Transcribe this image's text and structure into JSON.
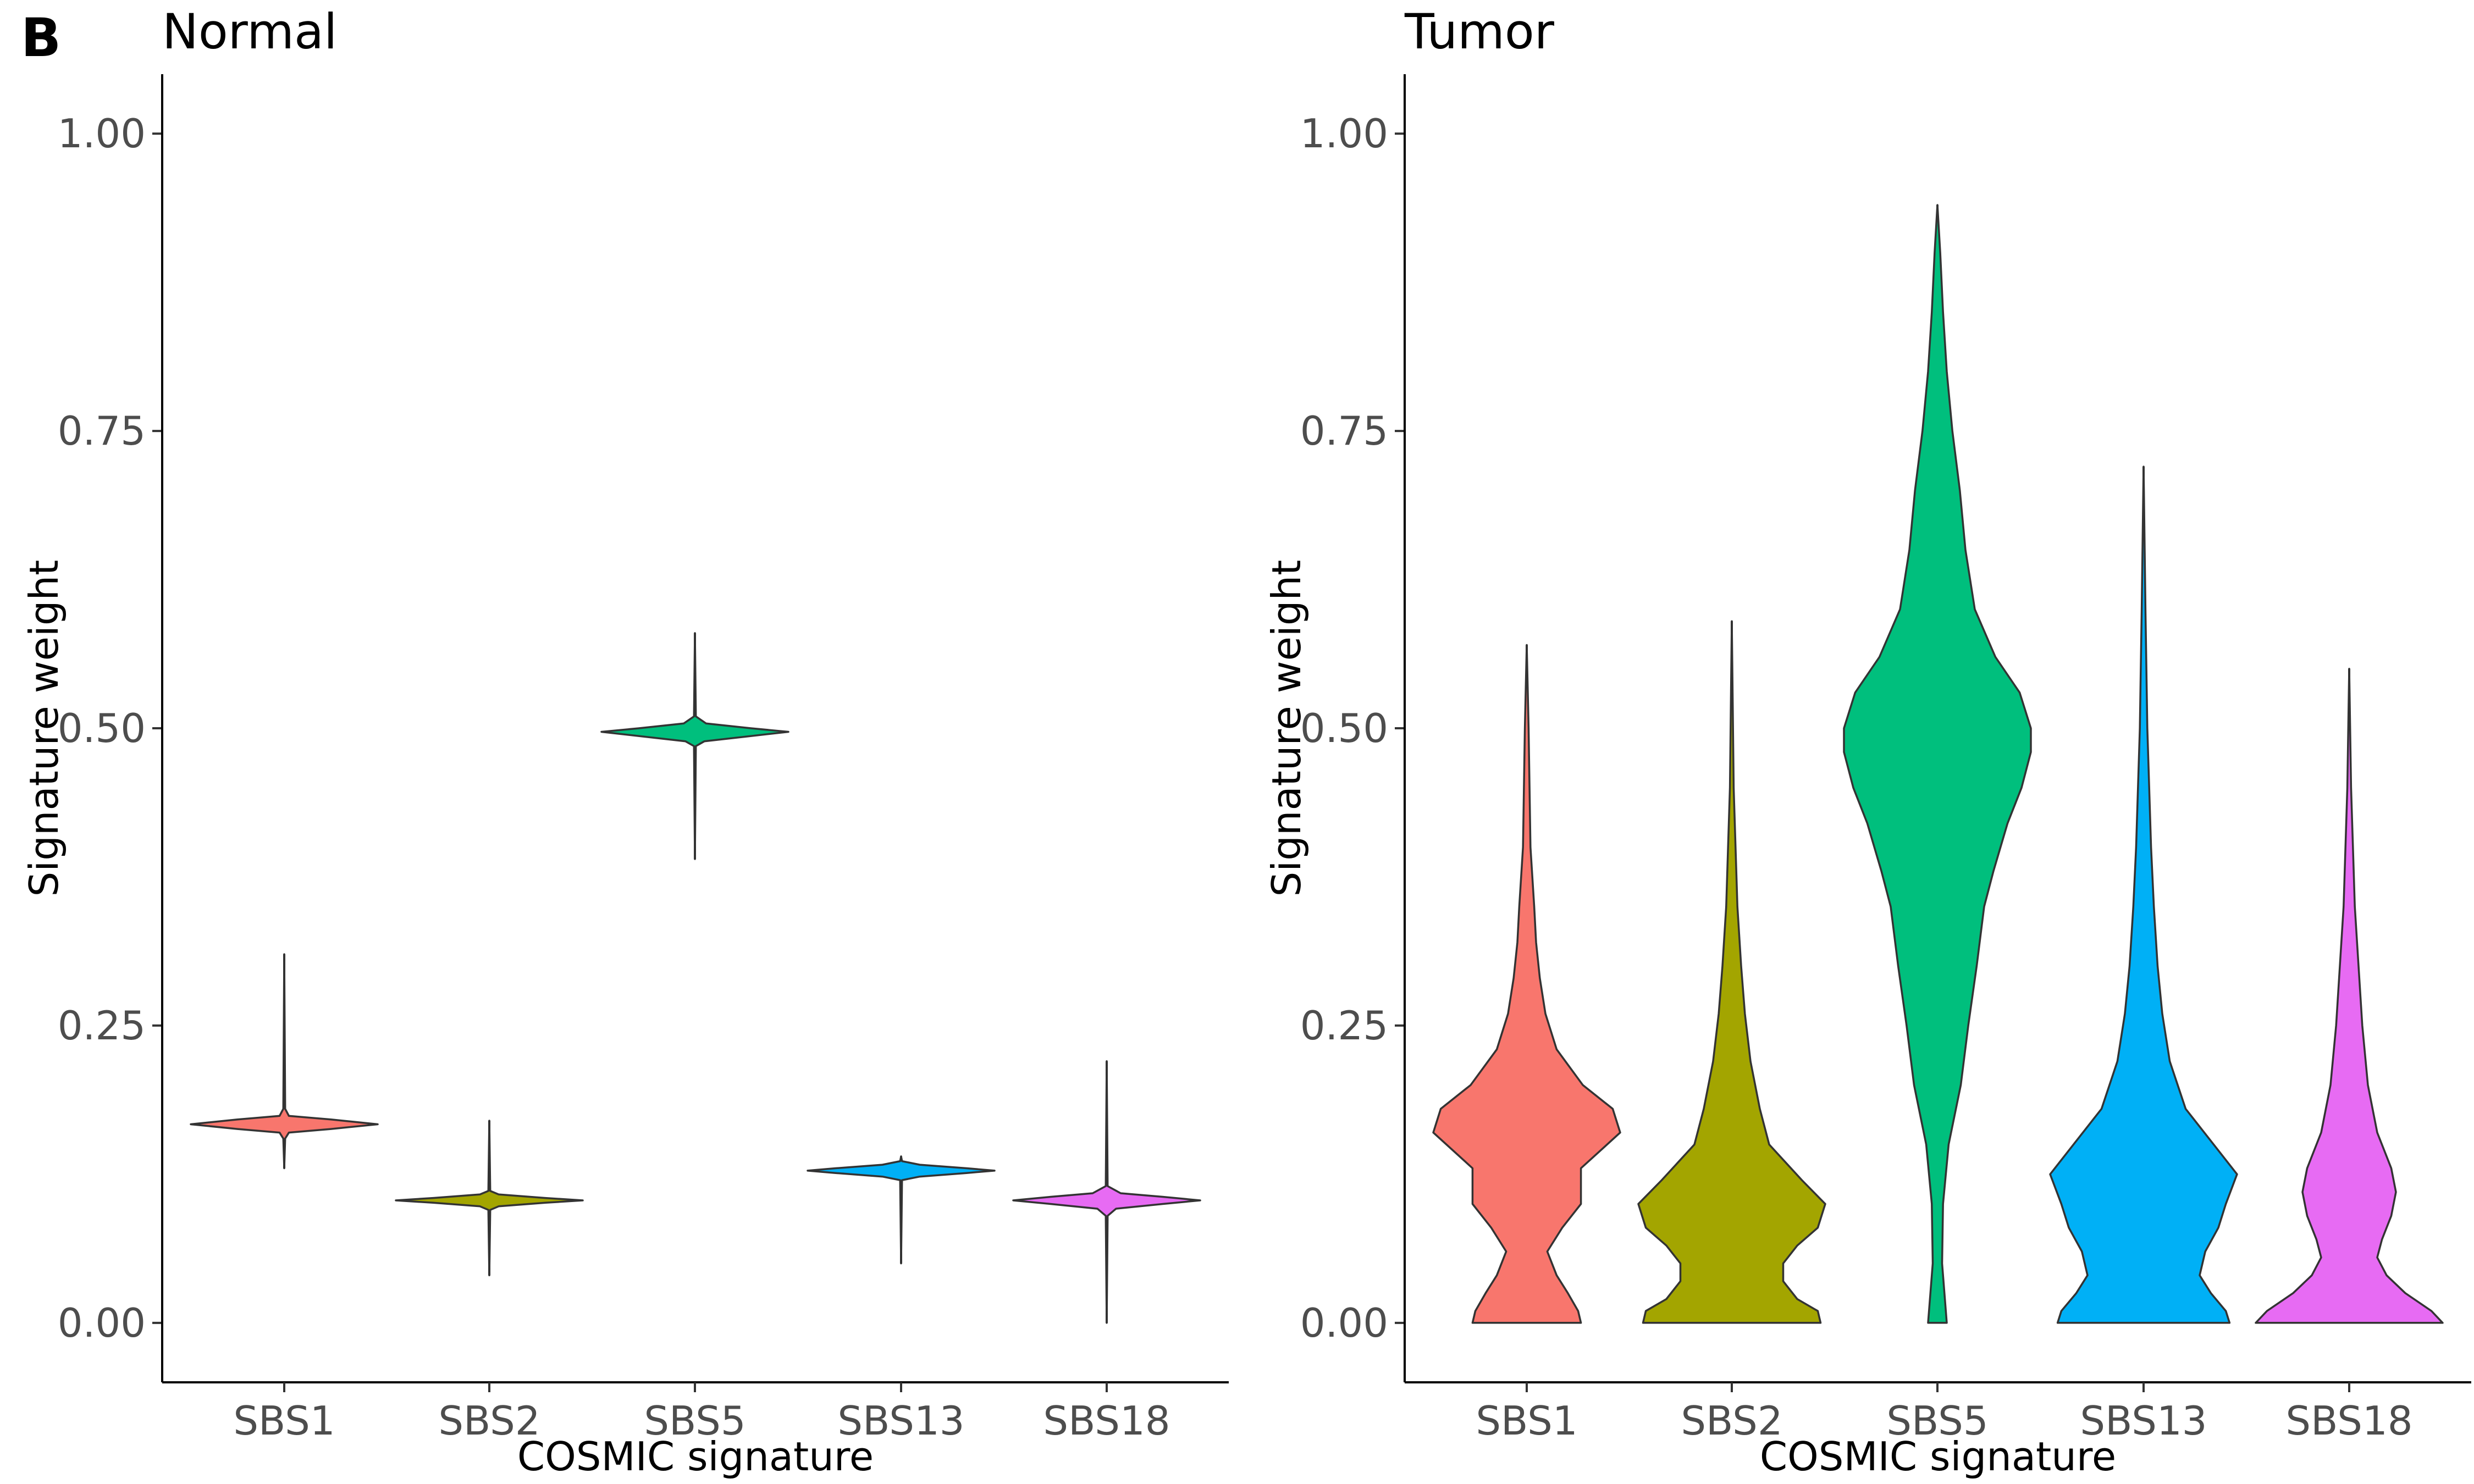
{
  "panel_letter": "B",
  "chart_data": [
    {
      "type": "violin",
      "title": "Normal",
      "xlabel": "COSMIC signature",
      "ylabel": "Signature weight",
      "ylim": [
        -0.05,
        1.05
      ],
      "yticks": [
        0.0,
        0.25,
        0.5,
        0.75,
        1.0
      ],
      "ytick_labels": [
        "0.00",
        "0.25",
        "0.50",
        "0.75",
        "1.00"
      ],
      "categories": [
        "SBS1",
        "SBS2",
        "SBS5",
        "SBS13",
        "SBS18"
      ],
      "colors": [
        "#F8766D",
        "#A3A500",
        "#00BF7D",
        "#00B0F6",
        "#E76BF3"
      ],
      "grid": false,
      "legend": "none",
      "series": [
        {
          "category": "SBS1",
          "min": 0.13,
          "max": 0.31,
          "profile": [
            [
              0.13,
              0.0
            ],
            [
              0.155,
              0.01
            ],
            [
              0.16,
              0.05
            ],
            [
              0.163,
              0.5
            ],
            [
              0.167,
              1.0
            ],
            [
              0.171,
              0.5
            ],
            [
              0.174,
              0.05
            ],
            [
              0.18,
              0.01
            ],
            [
              0.31,
              0.0
            ]
          ]
        },
        {
          "category": "SBS2",
          "min": 0.04,
          "max": 0.17,
          "profile": [
            [
              0.04,
              0.0
            ],
            [
              0.095,
              0.01
            ],
            [
              0.098,
              0.1
            ],
            [
              0.101,
              0.6
            ],
            [
              0.103,
              1.0
            ],
            [
              0.105,
              0.6
            ],
            [
              0.108,
              0.1
            ],
            [
              0.111,
              0.01
            ],
            [
              0.17,
              0.0
            ]
          ]
        },
        {
          "category": "SBS5",
          "min": 0.39,
          "max": 0.58,
          "profile": [
            [
              0.39,
              0.0
            ],
            [
              0.485,
              0.01
            ],
            [
              0.489,
              0.1
            ],
            [
              0.493,
              0.55
            ],
            [
              0.497,
              1.0
            ],
            [
              0.5,
              0.6
            ],
            [
              0.504,
              0.12
            ],
            [
              0.51,
              0.01
            ],
            [
              0.58,
              0.0
            ]
          ]
        },
        {
          "category": "SBS13",
          "min": 0.05,
          "max": 0.14,
          "profile": [
            [
              0.05,
              0.0
            ],
            [
              0.12,
              0.01
            ],
            [
              0.123,
              0.2
            ],
            [
              0.126,
              0.7
            ],
            [
              0.128,
              1.0
            ],
            [
              0.13,
              0.7
            ],
            [
              0.133,
              0.2
            ],
            [
              0.136,
              0.01
            ],
            [
              0.14,
              0.0
            ]
          ]
        },
        {
          "category": "SBS18",
          "min": 0.0,
          "max": 0.22,
          "profile": [
            [
              0.0,
              0.0
            ],
            [
              0.09,
              0.01
            ],
            [
              0.096,
              0.1
            ],
            [
              0.1,
              0.6
            ],
            [
              0.103,
              1.0
            ],
            [
              0.106,
              0.6
            ],
            [
              0.109,
              0.15
            ],
            [
              0.115,
              0.01
            ],
            [
              0.22,
              0.0
            ]
          ]
        }
      ]
    },
    {
      "type": "violin",
      "title": "Tumor",
      "xlabel": "COSMIC signature",
      "ylabel": "Signature weight",
      "ylim": [
        -0.05,
        1.05
      ],
      "yticks": [
        0.0,
        0.25,
        0.5,
        0.75,
        1.0
      ],
      "ytick_labels": [
        "0.00",
        "0.25",
        "0.50",
        "0.75",
        "1.00"
      ],
      "categories": [
        "SBS1",
        "SBS2",
        "SBS5",
        "SBS13",
        "SBS18"
      ],
      "colors": [
        "#F8766D",
        "#A3A500",
        "#00BF7D",
        "#00B0F6",
        "#E76BF3"
      ],
      "grid": false,
      "legend": "none",
      "series": [
        {
          "category": "SBS1",
          "min": 0.0,
          "max": 0.57,
          "profile": [
            [
              0.0,
              0.58
            ],
            [
              0.01,
              0.55
            ],
            [
              0.025,
              0.44
            ],
            [
              0.04,
              0.32
            ],
            [
              0.06,
              0.22
            ],
            [
              0.08,
              0.38
            ],
            [
              0.1,
              0.58
            ],
            [
              0.13,
              0.58
            ],
            [
              0.16,
              1.0
            ],
            [
              0.18,
              0.92
            ],
            [
              0.2,
              0.6
            ],
            [
              0.23,
              0.32
            ],
            [
              0.26,
              0.2
            ],
            [
              0.29,
              0.14
            ],
            [
              0.32,
              0.1
            ],
            [
              0.35,
              0.08
            ],
            [
              0.4,
              0.04
            ],
            [
              0.5,
              0.02
            ],
            [
              0.57,
              0.0
            ]
          ]
        },
        {
          "category": "SBS2",
          "min": 0.0,
          "max": 0.59,
          "profile": [
            [
              0.0,
              0.95
            ],
            [
              0.01,
              0.92
            ],
            [
              0.02,
              0.7
            ],
            [
              0.035,
              0.55
            ],
            [
              0.05,
              0.55
            ],
            [
              0.065,
              0.7
            ],
            [
              0.08,
              0.92
            ],
            [
              0.1,
              1.0
            ],
            [
              0.12,
              0.75
            ],
            [
              0.15,
              0.4
            ],
            [
              0.18,
              0.3
            ],
            [
              0.22,
              0.2
            ],
            [
              0.26,
              0.14
            ],
            [
              0.3,
              0.1
            ],
            [
              0.35,
              0.06
            ],
            [
              0.45,
              0.02
            ],
            [
              0.59,
              0.0
            ]
          ]
        },
        {
          "category": "SBS5",
          "min": 0.0,
          "max": 0.94,
          "profile": [
            [
              0.0,
              0.1
            ],
            [
              0.02,
              0.08
            ],
            [
              0.05,
              0.05
            ],
            [
              0.1,
              0.06
            ],
            [
              0.15,
              0.12
            ],
            [
              0.2,
              0.25
            ],
            [
              0.25,
              0.33
            ],
            [
              0.3,
              0.42
            ],
            [
              0.35,
              0.5
            ],
            [
              0.38,
              0.6
            ],
            [
              0.42,
              0.75
            ],
            [
              0.45,
              0.9
            ],
            [
              0.48,
              1.0
            ],
            [
              0.5,
              1.0
            ],
            [
              0.53,
              0.88
            ],
            [
              0.56,
              0.62
            ],
            [
              0.6,
              0.4
            ],
            [
              0.65,
              0.3
            ],
            [
              0.7,
              0.24
            ],
            [
              0.75,
              0.16
            ],
            [
              0.8,
              0.1
            ],
            [
              0.85,
              0.06
            ],
            [
              0.9,
              0.03
            ],
            [
              0.94,
              0.0
            ]
          ]
        },
        {
          "category": "SBS13",
          "min": 0.0,
          "max": 0.72,
          "profile": [
            [
              0.0,
              0.92
            ],
            [
              0.01,
              0.88
            ],
            [
              0.025,
              0.72
            ],
            [
              0.04,
              0.6
            ],
            [
              0.06,
              0.66
            ],
            [
              0.08,
              0.8
            ],
            [
              0.1,
              0.88
            ],
            [
              0.125,
              1.0
            ],
            [
              0.15,
              0.75
            ],
            [
              0.18,
              0.45
            ],
            [
              0.22,
              0.28
            ],
            [
              0.26,
              0.2
            ],
            [
              0.3,
              0.15
            ],
            [
              0.35,
              0.11
            ],
            [
              0.4,
              0.08
            ],
            [
              0.5,
              0.04
            ],
            [
              0.6,
              0.02
            ],
            [
              0.72,
              0.0
            ]
          ]
        },
        {
          "category": "SBS18",
          "min": 0.0,
          "max": 0.55,
          "profile": [
            [
              0.0,
              1.0
            ],
            [
              0.01,
              0.88
            ],
            [
              0.025,
              0.6
            ],
            [
              0.04,
              0.4
            ],
            [
              0.055,
              0.3
            ],
            [
              0.07,
              0.35
            ],
            [
              0.09,
              0.45
            ],
            [
              0.11,
              0.5
            ],
            [
              0.13,
              0.45
            ],
            [
              0.16,
              0.3
            ],
            [
              0.2,
              0.2
            ],
            [
              0.25,
              0.14
            ],
            [
              0.3,
              0.1
            ],
            [
              0.35,
              0.06
            ],
            [
              0.45,
              0.02
            ],
            [
              0.55,
              0.0
            ]
          ]
        }
      ]
    }
  ]
}
